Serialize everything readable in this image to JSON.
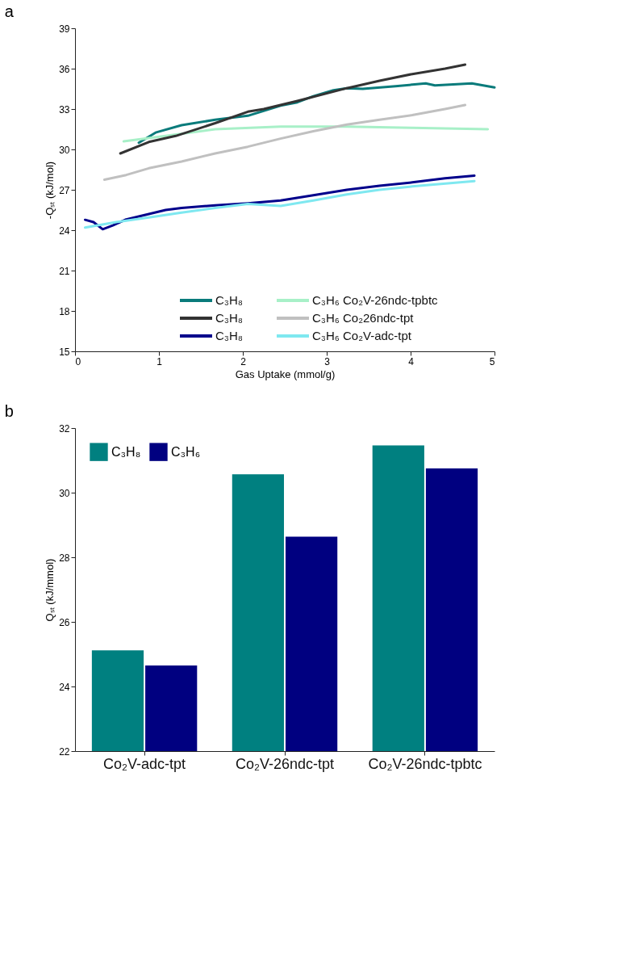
{
  "chart_data": [
    {
      "type": "line",
      "title": "a",
      "xlabel": "Gas Uptake (mmol/g)",
      "ylabel": "-Qₛₜ (kJ/mol)",
      "xlim": [
        0,
        5
      ],
      "ylim": [
        15,
        39
      ],
      "xticks": [
        0,
        1,
        2,
        3,
        4,
        5
      ],
      "yticks": [
        15,
        18,
        21,
        24,
        27,
        30,
        33,
        36,
        39
      ],
      "grid": false,
      "legend": "bottom right",
      "line_style": "solid",
      "marker": "none",
      "series": [
        {
          "name": "C₃H₈",
          "color": "#0a7b7b",
          "x": [
            0.76,
            0.96,
            1.27,
            1.67,
            2.06,
            2.45,
            2.65,
            2.84,
            3.08,
            3.24,
            3.43,
            3.82,
            4.18,
            4.29,
            4.73,
            5.0
          ],
          "values": [
            30.5,
            31.25,
            31.8,
            32.2,
            32.5,
            33.25,
            33.5,
            33.95,
            34.4,
            34.55,
            34.5,
            34.7,
            34.9,
            34.75,
            34.9,
            34.6
          ]
        },
        {
          "name": "C₃H₆ Co₂V-26ndc-tpbtc",
          "color": "#a8f0c8",
          "x": [
            0.58,
            1.08,
            1.67,
            2.45,
            3.24,
            4.02,
            4.92
          ],
          "values": [
            30.6,
            31.0,
            31.5,
            31.7,
            31.7,
            31.6,
            31.5
          ]
        },
        {
          "name": "C₃H₈",
          "color": "#333333",
          "x": [
            0.54,
            0.88,
            1.2,
            1.67,
            2.06,
            2.25,
            2.65,
            3.24,
            3.63,
            4.02,
            4.41,
            4.65
          ],
          "values": [
            29.7,
            30.55,
            31.0,
            31.95,
            32.8,
            33.0,
            33.6,
            34.55,
            35.1,
            35.6,
            36.0,
            36.3
          ]
        },
        {
          "name": "C₃H₆ Co₂26ndc-tpt",
          "color": "#c0c0c0",
          "x": [
            0.35,
            0.61,
            0.88,
            1.27,
            1.67,
            2.06,
            2.45,
            2.84,
            3.24,
            3.63,
            4.02,
            4.41,
            4.65
          ],
          "values": [
            27.75,
            28.1,
            28.6,
            29.1,
            29.7,
            30.2,
            30.8,
            31.35,
            31.85,
            32.2,
            32.55,
            33.0,
            33.3
          ]
        },
        {
          "name": "C₃H₈",
          "color": "#00008b",
          "x": [
            0.12,
            0.22,
            0.33,
            0.45,
            0.61,
            0.88,
            1.08,
            1.27,
            1.67,
            2.06,
            2.45,
            2.84,
            3.24,
            3.63,
            4.02,
            4.41,
            4.76
          ],
          "values": [
            24.77,
            24.6,
            24.07,
            24.35,
            24.8,
            25.2,
            25.5,
            25.65,
            25.85,
            26.0,
            26.2,
            26.6,
            27.0,
            27.3,
            27.55,
            27.85,
            28.05
          ]
        },
        {
          "name": "C₃H₆ Co₂V-adc-tpt",
          "color": "#7fe8f0",
          "x": [
            0.12,
            0.49,
            0.88,
            1.27,
            1.67,
            2.06,
            2.45,
            2.84,
            3.24,
            3.63,
            4.02,
            4.76
          ],
          "values": [
            24.2,
            24.6,
            24.95,
            25.3,
            25.65,
            25.95,
            25.8,
            26.2,
            26.65,
            27.0,
            27.25,
            27.65
          ]
        }
      ]
    },
    {
      "type": "bar",
      "title": "b",
      "ylabel": "Qₛₜ (kJ/mmol)",
      "categories": [
        "Co₂V-adc-tpt",
        "Co₂V-26ndc-tpt",
        "Co₂V-26ndc-tpbtc"
      ],
      "ylim": [
        22,
        32
      ],
      "yticks": [
        22,
        24,
        26,
        28,
        30,
        32
      ],
      "grid": false,
      "legend": "top left",
      "series": [
        {
          "name": "C₃H₈",
          "color": "#008080",
          "values": [
            25.12,
            30.57,
            31.46
          ]
        },
        {
          "name": "C₃H₆",
          "color": "#000080",
          "values": [
            24.65,
            28.64,
            30.75
          ]
        }
      ]
    }
  ]
}
